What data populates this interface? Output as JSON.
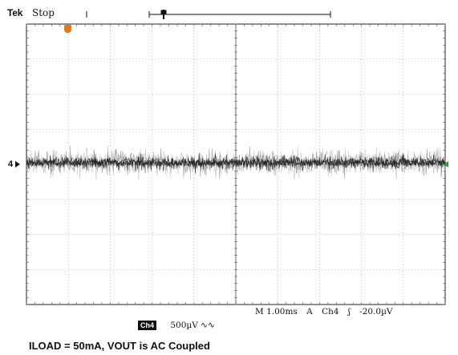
{
  "header": {
    "brand": "Tek",
    "status": "Stop"
  },
  "markers": {
    "trigger_position": "T",
    "channel_reference": "4",
    "trigger_marker_color": "#2f9a3a",
    "trigger_position_color": "#e07a18"
  },
  "readouts": {
    "timebase": "M 1.00ms",
    "trigger_mode": "A",
    "trigger_source": "Ch4",
    "trigger_slope_icon": "rising-edge-icon",
    "trigger_slope_glyph": "ʃ",
    "trigger_level": "-20.0µV",
    "channel_label": "Ch4",
    "channel_scale": "500µV",
    "channel_coupling_glyph": "∿∿"
  },
  "caption": "ILOAD = 50mA, VOUT is AC Coupled",
  "display": {
    "grid_divisions_x": 10,
    "grid_divisions_y": 8,
    "trace_color": "#303030"
  }
}
